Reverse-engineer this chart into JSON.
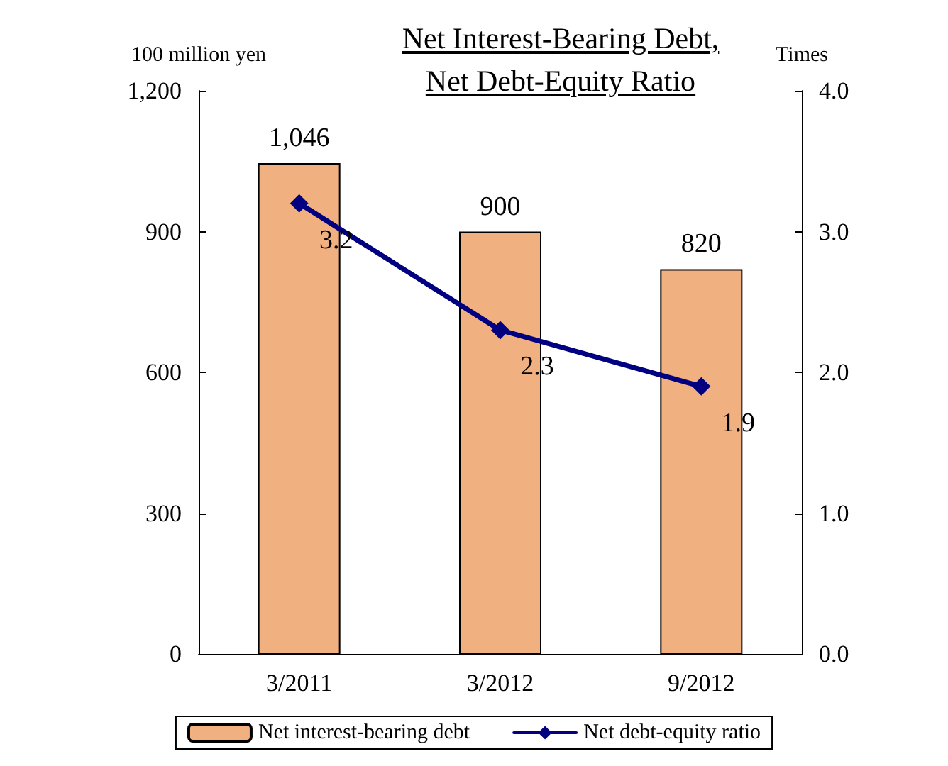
{
  "chart_data": {
    "type": "bar",
    "title": "Net Interest-Bearing Debt,\nNet Debt-Equity Ratio",
    "ylabel": "100 million yen",
    "y2label": "Times",
    "categories": [
      "3/2011",
      "3/2012",
      "9/2012"
    ],
    "series": [
      {
        "name": "Net interest-bearing debt",
        "color": "#f0b080",
        "values": [
          1046,
          900,
          820
        ],
        "value_labels": [
          "1,046",
          "900",
          "820"
        ]
      },
      {
        "name": "Net debt-equity ratio",
        "type": "line",
        "axis": "y2",
        "color": "#000080",
        "values": [
          3.2,
          2.3,
          1.9
        ],
        "value_labels": [
          "3.2",
          "2.3",
          "1.9"
        ],
        "marker": "diamond",
        "line_style": "solid"
      }
    ],
    "ylim": [
      0,
      1200
    ],
    "yticks": [
      0,
      {
        "value": 300,
        "label": "300"
      },
      {
        "value": 600,
        "label": "600"
      },
      {
        "value": 900,
        "label": "900"
      },
      {
        "value": 1200,
        "label": "1,200"
      }
    ],
    "y2lim": [
      0,
      4
    ],
    "y2ticks": [
      {
        "value": 0,
        "label": "0.0"
      },
      {
        "value": 1,
        "label": "1.0"
      },
      {
        "value": 2,
        "label": "2.0"
      },
      {
        "value": 3,
        "label": "3.0"
      },
      {
        "value": 4,
        "label": "4.0"
      }
    ],
    "grid": false,
    "legend": "bottom"
  }
}
